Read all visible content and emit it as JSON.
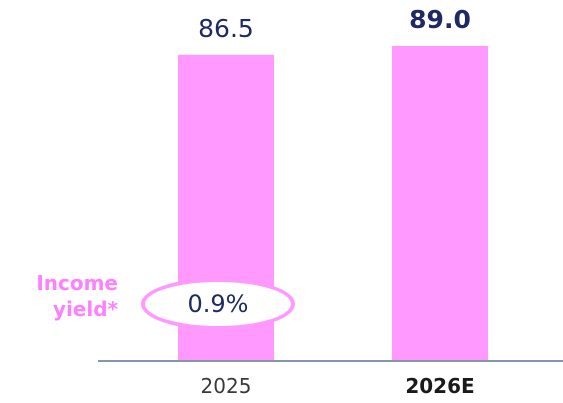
{
  "chart_data": {
    "type": "bar",
    "categories": [
      "2025",
      "2026E"
    ],
    "category_emphasis": [
      false,
      true
    ],
    "values": [
      86.5,
      89.0
    ],
    "value_labels": [
      "86.5",
      "89.0"
    ],
    "title": "",
    "xlabel": "",
    "ylabel": "",
    "ylim": [
      0,
      89.0
    ],
    "grid": false,
    "legend": "none",
    "annotations": [
      {
        "label": "Income yield*",
        "category": "2025",
        "value": "0.9%"
      }
    ]
  },
  "colors": {
    "bar": "#FF99FF",
    "axis": "#8497B0",
    "value_text": "#1F2A63",
    "tick_text": "#3A3A3A",
    "annotation": "#FF80FF",
    "oval_border": "#FF99FF"
  }
}
